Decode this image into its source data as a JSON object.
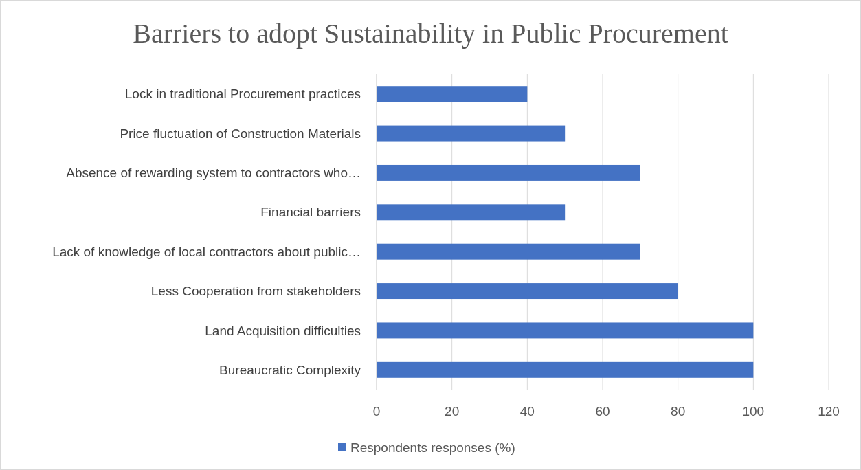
{
  "chart_data": {
    "type": "bar",
    "orientation": "horizontal",
    "title": "Barriers to adopt Sustainability in Public Procurement",
    "categories": [
      "Lock in traditional Procurement practices",
      "Price fluctuation of Construction Materials",
      "Absence of rewarding system to contractors who…",
      "Financial barriers",
      "Lack of knowledge of local contractors about public…",
      "Less Cooperation from stakeholders",
      "Land Acquisition difficulties",
      "Bureaucratic Complexity"
    ],
    "series": [
      {
        "name": "Respondents responses (%)",
        "color": "#4472c4",
        "values": [
          40,
          50,
          70,
          50,
          70,
          80,
          100,
          100
        ]
      }
    ],
    "xlim": [
      0,
      120
    ],
    "xticks": [
      0,
      20,
      40,
      60,
      80,
      100,
      120
    ],
    "grid": "x",
    "legend": "bottom"
  }
}
